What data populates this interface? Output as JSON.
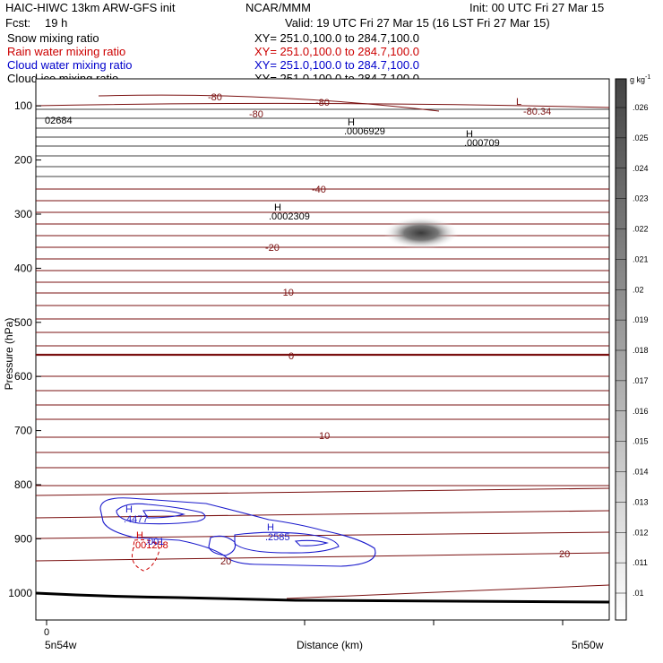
{
  "header": {
    "model": "HAIC-HIWC 13km ARW-GFS init",
    "org": "NCAR/MMM",
    "init": "Init: 00 UTC Fri 27 Mar 15",
    "fcst_label": "Fcst:",
    "fcst_value": "19 h",
    "valid": "Valid: 19 UTC Fri 27 Mar 15 (16 LST Fri 27 Mar 15)"
  },
  "legend": [
    {
      "name": "Snow mixing ratio",
      "xy": "XY= 251.0,100.0 to 284.7,100.0",
      "color": "#000000"
    },
    {
      "name": "Rain water mixing ratio",
      "xy": "XY= 251.0,100.0 to 284.7,100.0",
      "color": "#cc0000"
    },
    {
      "name": "Cloud water mixing ratio",
      "xy": "XY= 251.0,100.0 to 284.7,100.0",
      "color": "#0000cc"
    },
    {
      "name": "Cloud ice mixing ratio",
      "xy": "XY= 251.0,100.0 to 284.7,100.0",
      "color": "#000000"
    }
  ],
  "colors": {
    "temperature": "#7a1010",
    "rain": "#cc0000",
    "cloud_water": "#1a1acc",
    "text": "#000000"
  },
  "chart_data": {
    "type": "cross-section",
    "ylabel": "Pressure (hPa)",
    "xlabel": "Distance (km)",
    "x_origin_label": "0",
    "x_start_label": "5n54w",
    "x_end_label": "5n50w",
    "yticks": [
      100,
      200,
      300,
      400,
      500,
      600,
      700,
      800,
      900,
      1000
    ],
    "ylim": [
      1050,
      50
    ],
    "colorbar": {
      "unit": "g kg",
      "unit_exp": "-1",
      "ticks": [
        ".01",
        ".011",
        ".012",
        ".013",
        ".014",
        ".015",
        ".016",
        ".017",
        ".018",
        ".019",
        ".02",
        ".021",
        ".022",
        ".023",
        ".024",
        ".025",
        ".026"
      ]
    },
    "temperature_labels": [
      "-80",
      "-80",
      "-80",
      "-40",
      "-20",
      "-10",
      "0",
      "10",
      "20",
      "20"
    ],
    "extrema": [
      {
        "letter": "L",
        "value": "-80.34"
      },
      {
        "letter": "H",
        "value": ".0006929"
      },
      {
        "letter": "H",
        "value": ".000709"
      },
      {
        "letter": "H",
        "value": ".0002309"
      },
      {
        "letter": "H",
        "value": ".4477"
      },
      {
        "letter": "H",
        "value": ".2585"
      },
      {
        "letter": "H",
        "value": ".001258"
      }
    ],
    "left_value": "02684",
    "cloud_water_label": ".001",
    "ice_max_region": {
      "pressure_hpa": 325,
      "value_g_per_kg": 0.023
    }
  }
}
